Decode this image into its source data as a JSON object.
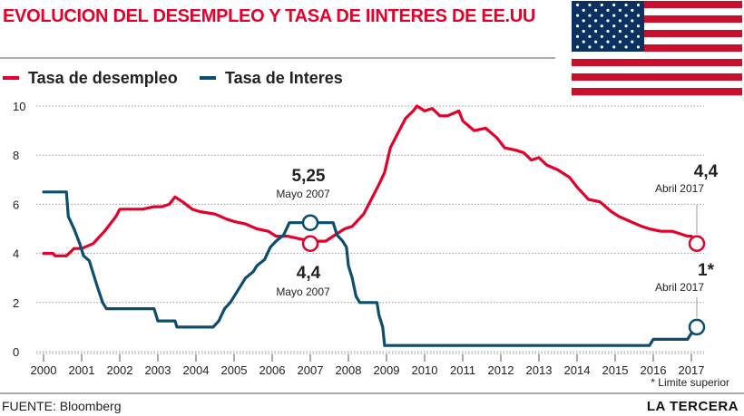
{
  "title": "EVOLUCION DEL DESEMPLEO Y TASA DE IINTERES DE EE.UU",
  "source": "FUENTE: Bloomberg",
  "brand": "LA TERCERA",
  "colors": {
    "unemployment": "#e4002b",
    "interest": "#0d4d6e",
    "title": "#e4002b",
    "grid": "#9a9a9a"
  },
  "icons": {
    "flag": "us-flag-icon"
  },
  "chart_data": {
    "type": "line",
    "xlim": [
      2000,
      2017.3
    ],
    "ylim": [
      0,
      10
    ],
    "x_ticks": [
      "2000",
      "2001",
      "2002",
      "2003",
      "2004",
      "2005",
      "2006",
      "2007",
      "2008",
      "2009",
      "2010",
      "2011",
      "2012",
      "2013",
      "2014",
      "2015",
      "2016",
      "2017"
    ],
    "y_ticks": [
      "0",
      "2",
      "4",
      "6",
      "8",
      "10"
    ],
    "grid": true,
    "legend_placement": "top-left",
    "series": [
      {
        "name": "Tasa de desempleo",
        "color": "#e4002b",
        "points": [
          [
            2000,
            4.0
          ],
          [
            2000.25,
            4.0
          ],
          [
            2000.3,
            3.9
          ],
          [
            2000.6,
            3.9
          ],
          [
            2000.8,
            4.2
          ],
          [
            2001.0,
            4.2
          ],
          [
            2001.3,
            4.4
          ],
          [
            2001.6,
            4.9
          ],
          [
            2001.9,
            5.5
          ],
          [
            2002.0,
            5.8
          ],
          [
            2002.3,
            5.8
          ],
          [
            2002.6,
            5.8
          ],
          [
            2002.9,
            5.9
          ],
          [
            2003.1,
            5.9
          ],
          [
            2003.3,
            6.0
          ],
          [
            2003.45,
            6.3
          ],
          [
            2003.65,
            6.1
          ],
          [
            2003.9,
            5.8
          ],
          [
            2004.1,
            5.7
          ],
          [
            2004.5,
            5.6
          ],
          [
            2004.8,
            5.4
          ],
          [
            2005.0,
            5.3
          ],
          [
            2005.3,
            5.2
          ],
          [
            2005.6,
            5.0
          ],
          [
            2005.9,
            4.9
          ],
          [
            2006.1,
            4.7
          ],
          [
            2006.4,
            4.7
          ],
          [
            2006.7,
            4.6
          ],
          [
            2007.0,
            4.5
          ],
          [
            2007.4,
            4.5
          ],
          [
            2007.6,
            4.7
          ],
          [
            2007.9,
            5.0
          ],
          [
            2008.1,
            5.1
          ],
          [
            2008.4,
            5.6
          ],
          [
            2008.6,
            6.2
          ],
          [
            2008.8,
            6.8
          ],
          [
            2008.95,
            7.3
          ],
          [
            2009.1,
            8.3
          ],
          [
            2009.3,
            8.9
          ],
          [
            2009.5,
            9.5
          ],
          [
            2009.7,
            9.8
          ],
          [
            2009.8,
            10.0
          ],
          [
            2010.0,
            9.8
          ],
          [
            2010.2,
            9.9
          ],
          [
            2010.4,
            9.6
          ],
          [
            2010.6,
            9.6
          ],
          [
            2010.9,
            9.8
          ],
          [
            2011.0,
            9.4
          ],
          [
            2011.3,
            9.0
          ],
          [
            2011.6,
            9.1
          ],
          [
            2011.9,
            8.7
          ],
          [
            2012.1,
            8.3
          ],
          [
            2012.4,
            8.2
          ],
          [
            2012.6,
            8.1
          ],
          [
            2012.8,
            7.8
          ],
          [
            2013.0,
            7.9
          ],
          [
            2013.2,
            7.6
          ],
          [
            2013.5,
            7.4
          ],
          [
            2013.8,
            7.1
          ],
          [
            2014.0,
            6.7
          ],
          [
            2014.3,
            6.2
          ],
          [
            2014.6,
            6.1
          ],
          [
            2014.9,
            5.7
          ],
          [
            2015.1,
            5.5
          ],
          [
            2015.4,
            5.3
          ],
          [
            2015.7,
            5.1
          ],
          [
            2015.9,
            5.0
          ],
          [
            2016.2,
            4.9
          ],
          [
            2016.5,
            4.9
          ],
          [
            2016.7,
            4.8
          ],
          [
            2016.9,
            4.7
          ],
          [
            2017.0,
            4.7
          ],
          [
            2017.1,
            4.5
          ],
          [
            2017.25,
            4.4
          ]
        ]
      },
      {
        "name": "Tasa de Interes",
        "color": "#0d4d6e",
        "points": [
          [
            2000,
            6.5
          ],
          [
            2000.6,
            6.5
          ],
          [
            2000.65,
            5.5
          ],
          [
            2000.8,
            5.0
          ],
          [
            2000.95,
            4.4
          ],
          [
            2001.05,
            3.9
          ],
          [
            2001.2,
            3.7
          ],
          [
            2001.4,
            2.7
          ],
          [
            2001.55,
            2.0
          ],
          [
            2001.65,
            1.75
          ],
          [
            2002.5,
            1.75
          ],
          [
            2002.9,
            1.75
          ],
          [
            2003.0,
            1.25
          ],
          [
            2003.45,
            1.25
          ],
          [
            2003.5,
            1.0
          ],
          [
            2004.45,
            1.0
          ],
          [
            2004.6,
            1.25
          ],
          [
            2004.75,
            1.75
          ],
          [
            2004.9,
            2.0
          ],
          [
            2005.1,
            2.5
          ],
          [
            2005.3,
            3.0
          ],
          [
            2005.5,
            3.25
          ],
          [
            2005.6,
            3.5
          ],
          [
            2005.8,
            3.75
          ],
          [
            2005.95,
            4.25
          ],
          [
            2006.1,
            4.5
          ],
          [
            2006.3,
            4.75
          ],
          [
            2006.45,
            5.25
          ],
          [
            2007.6,
            5.25
          ],
          [
            2007.7,
            4.75
          ],
          [
            2007.85,
            4.5
          ],
          [
            2007.95,
            4.25
          ],
          [
            2008.0,
            3.5
          ],
          [
            2008.1,
            3.0
          ],
          [
            2008.2,
            2.25
          ],
          [
            2008.3,
            2.0
          ],
          [
            2008.75,
            2.0
          ],
          [
            2008.8,
            1.5
          ],
          [
            2008.9,
            1.0
          ],
          [
            2008.95,
            0.25
          ],
          [
            2015.9,
            0.25
          ],
          [
            2016.0,
            0.5
          ],
          [
            2016.9,
            0.5
          ],
          [
            2017.0,
            0.75
          ],
          [
            2017.2,
            0.75
          ],
          [
            2017.25,
            1.0
          ]
        ]
      }
    ],
    "annotations": [
      {
        "value": "5,25",
        "label": "Mayo 2007",
        "x": 2007.0,
        "y": 5.25,
        "series": "Tasa de Interes"
      },
      {
        "value": "4,4",
        "label": "Mayo 2007",
        "x": 2007.0,
        "y": 4.4,
        "series": "Tasa de desempleo"
      },
      {
        "value": "4,4",
        "label": "Abril 2017",
        "x": 2017.25,
        "y": 4.4,
        "series": "Tasa de desempleo"
      },
      {
        "value": "1*",
        "label": "Abril 2017",
        "x": 2017.25,
        "y": 1.0,
        "series": "Tasa de Interes"
      }
    ],
    "footnote": "* Limite superior"
  }
}
